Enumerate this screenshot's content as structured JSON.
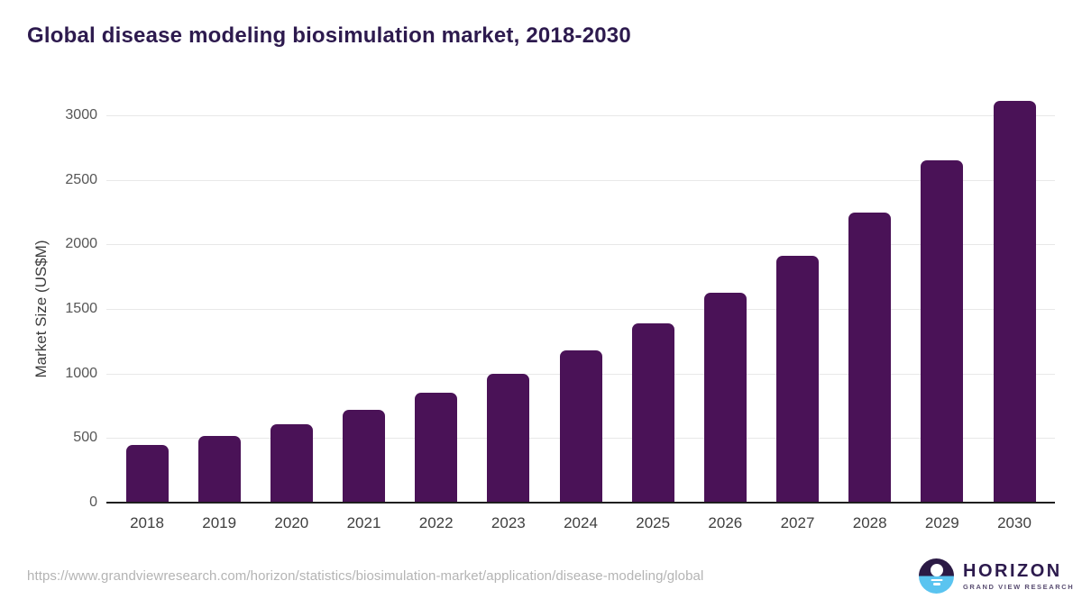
{
  "header": {
    "title": "Global disease modeling biosimulation market, 2018-2030"
  },
  "chart_data": {
    "type": "bar",
    "title": "Global disease modeling biosimulation market, 2018-2030",
    "categories": [
      "2018",
      "2019",
      "2020",
      "2021",
      "2022",
      "2023",
      "2024",
      "2025",
      "2026",
      "2027",
      "2028",
      "2029",
      "2030"
    ],
    "values": [
      445,
      515,
      605,
      720,
      850,
      1000,
      1180,
      1385,
      1625,
      1910,
      2245,
      2650,
      3110
    ],
    "xlabel": "",
    "ylabel": "Market Size (US$M)",
    "ylim": [
      0,
      3000
    ],
    "yticks": [
      0,
      500,
      1000,
      1500,
      2000,
      2500,
      3000
    ],
    "grid": "horizontal",
    "legend_position": "none",
    "bar_color": "#4a1257",
    "title_color": "#2d1a4e",
    "gridline_color": "#e8e8e8",
    "axis_line_color": "#1f1f1f"
  },
  "footer": {
    "source_url": "https://www.grandviewresearch.com/horizon/statistics/biosimulation-market/application/disease-modeling/global",
    "logo": {
      "brand": "HORIZON",
      "subtitle": "GRAND VIEW RESEARCH",
      "mark_top_color": "#2b1a45",
      "mark_bottom_color": "#5ac4f0"
    }
  }
}
